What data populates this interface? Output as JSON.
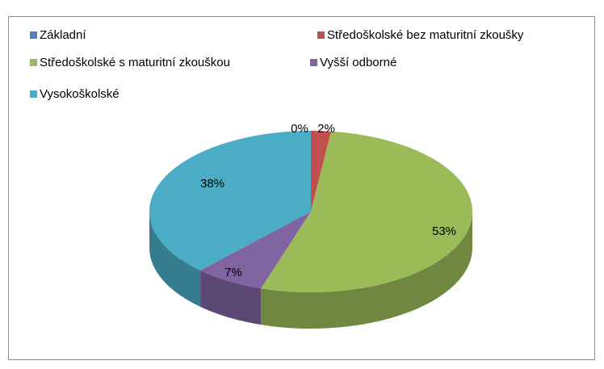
{
  "chart_data": {
    "type": "pie",
    "categories": [
      "Základní",
      "Středoškolské bez maturitní zkoušky",
      "Středoškolské s maturitní zkouškou",
      "Vyšší odborné",
      "Vysokoškolské"
    ],
    "values": [
      0,
      2,
      53,
      7,
      38
    ],
    "value_labels": [
      "0%",
      "2%",
      "53%",
      "7%",
      "38%"
    ],
    "colors": [
      "#4F81BD",
      "#C0504D",
      "#9BBB59",
      "#8064A2",
      "#4BACC6"
    ],
    "legend": "top"
  }
}
